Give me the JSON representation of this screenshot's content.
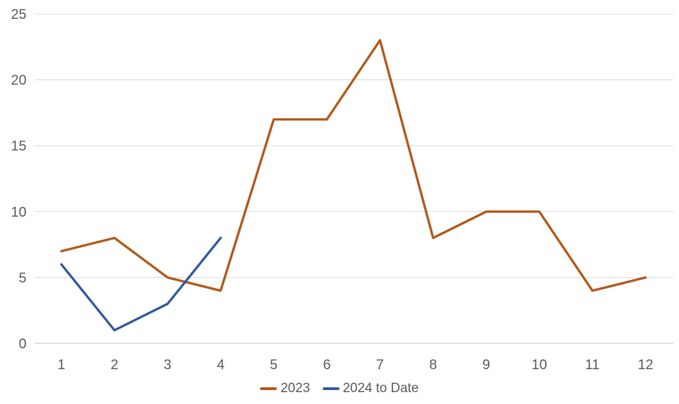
{
  "chart_data": {
    "type": "line",
    "title": "",
    "xlabel": "",
    "ylabel": "",
    "x_categories": [
      "1",
      "2",
      "3",
      "4",
      "5",
      "6",
      "7",
      "8",
      "9",
      "10",
      "11",
      "12"
    ],
    "series": [
      {
        "name": "2023",
        "color": "#B2581A",
        "values": [
          7,
          8,
          5,
          4,
          17,
          17,
          23,
          8,
          10,
          10,
          4,
          5
        ]
      },
      {
        "name": "2024 to Date",
        "color": "#315A9D",
        "values": [
          6,
          1,
          3,
          8
        ]
      }
    ],
    "ylim": [
      0,
      25
    ],
    "yticks": [
      0,
      5,
      10,
      15,
      20,
      25
    ],
    "grid": "horizontal-only",
    "legend_position": "bottom-center"
  },
  "styles": {
    "gridline_color": "#D9D9D9",
    "axis_line_color": "#C0C0C0",
    "tick_label_color": "#595959",
    "legend_text_color": "#595959",
    "background_color": "#FFFFFF",
    "line_stroke_width": 3.4
  }
}
